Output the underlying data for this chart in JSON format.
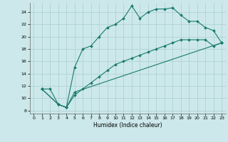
{
  "xlabel": "Humidex (Indice chaleur)",
  "xlim": [
    -0.5,
    23.5
  ],
  "ylim": [
    7.5,
    25.5
  ],
  "xticks": [
    0,
    1,
    2,
    3,
    4,
    5,
    6,
    7,
    8,
    9,
    10,
    11,
    12,
    13,
    14,
    15,
    16,
    17,
    18,
    19,
    20,
    21,
    22,
    23
  ],
  "yticks": [
    8,
    10,
    12,
    14,
    16,
    18,
    20,
    22,
    24
  ],
  "bg_color": "#cce8ea",
  "line_color": "#1a7a6e",
  "grid_color": "#aacdd0",
  "line1_x": [
    1,
    2,
    3,
    4,
    5,
    6,
    7,
    8,
    9,
    10,
    11,
    12,
    13,
    14,
    15,
    16,
    17,
    18,
    19,
    20,
    21,
    22,
    23
  ],
  "line1_y": [
    11.5,
    11.5,
    9.0,
    8.5,
    15.0,
    18.0,
    18.5,
    20.0,
    21.5,
    22.0,
    23.0,
    25.0,
    23.0,
    24.0,
    24.5,
    24.5,
    24.7,
    23.5,
    22.5,
    22.5,
    21.5,
    21.0,
    19.0
  ],
  "line2_x": [
    1,
    3,
    4,
    5,
    23
  ],
  "line2_y": [
    11.5,
    9.0,
    8.5,
    11.0,
    19.0
  ],
  "line3_x": [
    1,
    3,
    4,
    5,
    6,
    7,
    8,
    9,
    10,
    11,
    12,
    13,
    14,
    15,
    16,
    17,
    18,
    19,
    20,
    21,
    22,
    23
  ],
  "line3_y": [
    11.5,
    9.0,
    8.5,
    10.5,
    11.5,
    12.5,
    13.5,
    14.5,
    15.5,
    16.0,
    16.5,
    17.0,
    17.5,
    18.0,
    18.5,
    19.0,
    19.5,
    19.5,
    19.5,
    19.5,
    18.5,
    19.0
  ]
}
